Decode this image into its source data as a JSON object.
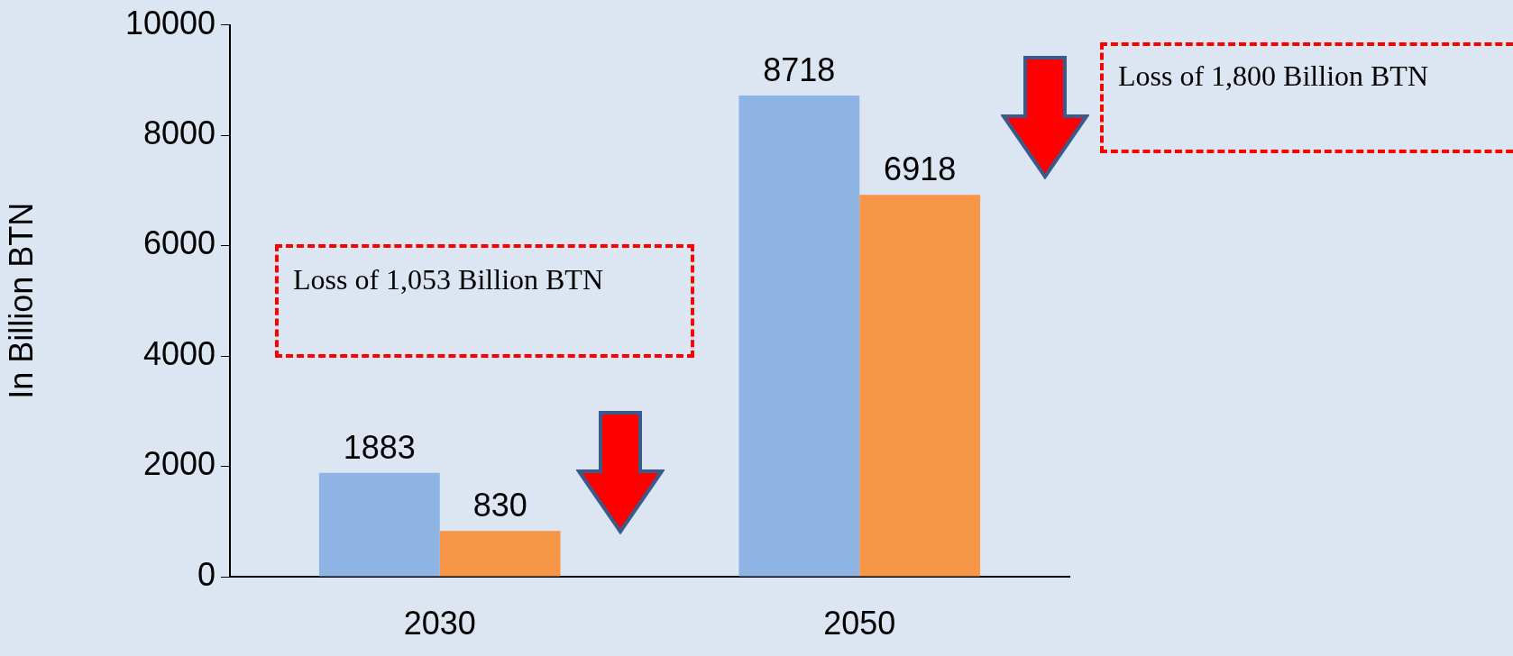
{
  "chart_data": {
    "type": "bar",
    "ylabel": "In Billion BTN",
    "categories": [
      "2030",
      "2050"
    ],
    "series": [
      {
        "color": "#8eb4e3",
        "values": [
          1883,
          8718
        ]
      },
      {
        "color": "#f79646",
        "values": [
          830,
          6918
        ]
      }
    ],
    "ylim": [
      0,
      10000
    ],
    "yticks": [
      0,
      2000,
      4000,
      6000,
      8000,
      10000
    ],
    "grid": false,
    "legend": false,
    "data_labels": true,
    "annotations": [
      "Loss  of 1,053 Billion BTN",
      "Loss  of 1,800 Billion BTN"
    ]
  }
}
